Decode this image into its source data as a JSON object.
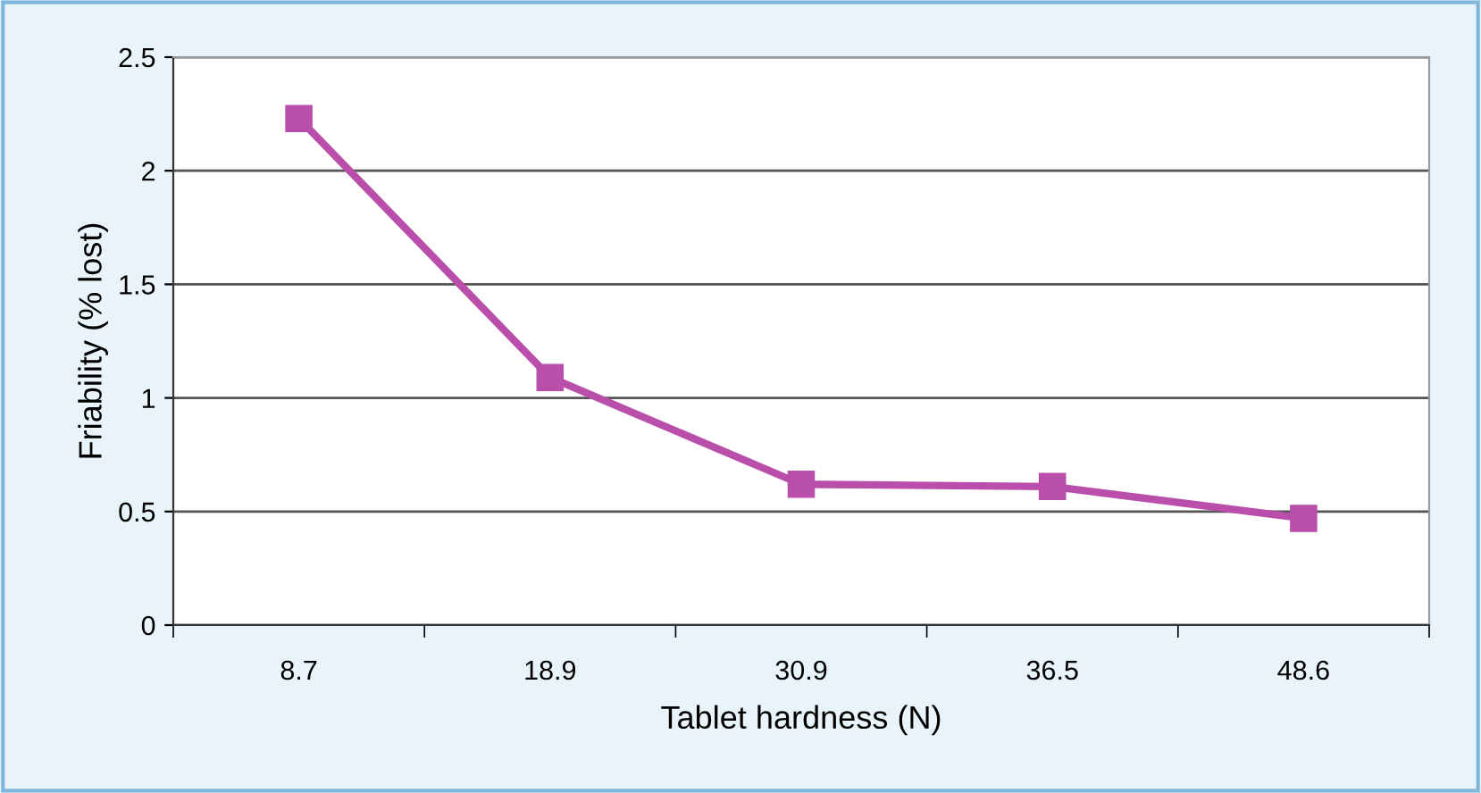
{
  "chart_data": {
    "type": "line",
    "xlabel": "Tablet hardness (N)",
    "ylabel": "Friability (% lost)",
    "categories": [
      "8.7",
      "18.9",
      "30.9",
      "36.5",
      "48.6"
    ],
    "series": [
      {
        "color": "#b94fab",
        "values": [
          2.23,
          1.09,
          0.62,
          0.61,
          0.47
        ]
      }
    ],
    "ylim": [
      0,
      2.5
    ],
    "yticks": [
      0,
      0.5,
      1,
      1.5,
      2,
      2.5
    ],
    "grid": "y",
    "marker": "square",
    "line_style": "solid",
    "legend": false
  }
}
